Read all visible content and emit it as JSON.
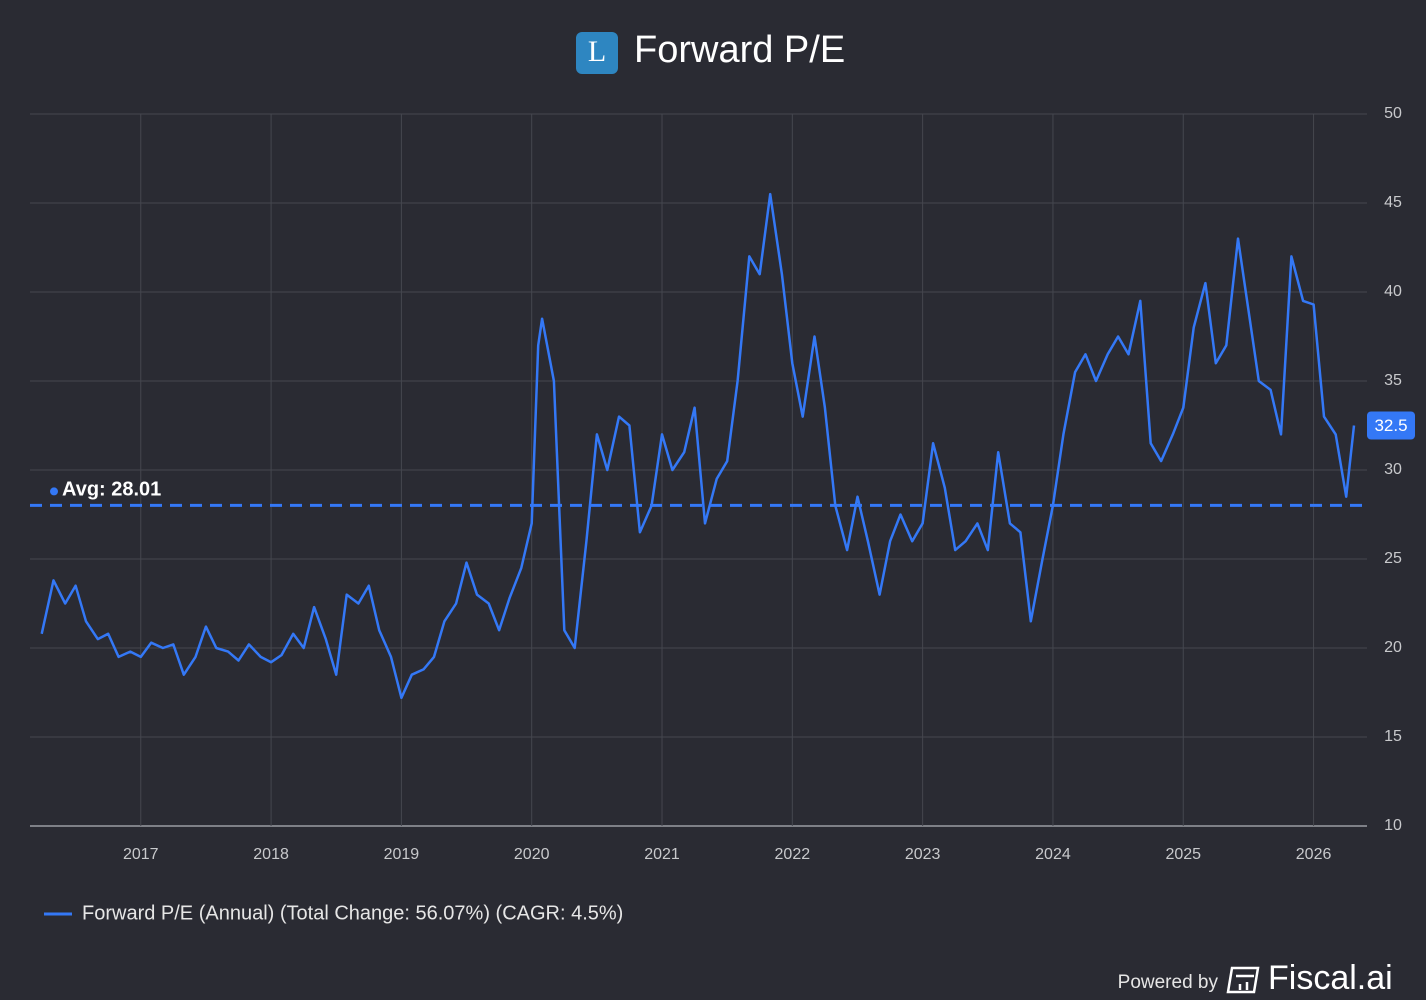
{
  "chart_data": {
    "type": "line",
    "title": "Forward P/E",
    "logo_letter": "L",
    "x": [
      2016.24,
      2016.33,
      2016.42,
      2016.5,
      2016.58,
      2016.67,
      2016.75,
      2016.83,
      2016.92,
      2017.0,
      2017.08,
      2017.17,
      2017.25,
      2017.33,
      2017.42,
      2017.5,
      2017.58,
      2017.67,
      2017.75,
      2017.83,
      2017.92,
      2018.0,
      2018.08,
      2018.17,
      2018.25,
      2018.33,
      2018.42,
      2018.5,
      2018.58,
      2018.67,
      2018.75,
      2018.83,
      2018.92,
      2019.0,
      2019.08,
      2019.17,
      2019.25,
      2019.33,
      2019.42,
      2019.5,
      2019.58,
      2019.67,
      2019.75,
      2019.83,
      2019.92,
      2020.0,
      2020.05,
      2020.08,
      2020.17,
      2020.25,
      2020.33,
      2020.42,
      2020.5,
      2020.58,
      2020.67,
      2020.75,
      2020.83,
      2020.92,
      2021.0,
      2021.08,
      2021.17,
      2021.25,
      2021.33,
      2021.42,
      2021.5,
      2021.58,
      2021.67,
      2021.75,
      2021.83,
      2021.92,
      2022.0,
      2022.08,
      2022.17,
      2022.25,
      2022.33,
      2022.42,
      2022.5,
      2022.58,
      2022.67,
      2022.75,
      2022.83,
      2022.92,
      2023.0,
      2023.08,
      2023.17,
      2023.25,
      2023.33,
      2023.42,
      2023.5,
      2023.58,
      2023.67,
      2023.75,
      2023.83,
      2023.92,
      2024.0,
      2024.08,
      2024.17,
      2024.25,
      2024.33,
      2024.42,
      2024.5,
      2024.58,
      2024.67,
      2024.75,
      2024.83,
      2024.92,
      2025.0,
      2025.08,
      2025.17,
      2025.25,
      2025.33,
      2025.42,
      2025.5,
      2025.58,
      2025.67,
      2025.75,
      2025.83,
      2025.92,
      2026.0,
      2026.08,
      2026.17,
      2026.25,
      2026.31
    ],
    "series": [
      {
        "name": "Forward P/E (Annual) (Total Change: 56.07%) (CAGR: 4.5%)",
        "color": "#3478f6",
        "values": [
          20.8,
          23.8,
          22.5,
          23.5,
          21.5,
          20.5,
          20.8,
          19.5,
          19.8,
          19.5,
          20.3,
          20,
          20.2,
          18.5,
          19.5,
          21.2,
          20,
          19.8,
          19.3,
          20.2,
          19.5,
          19.2,
          19.6,
          20.8,
          20,
          22.3,
          20.5,
          18.5,
          23,
          22.5,
          23.5,
          21,
          19.5,
          17.2,
          18.5,
          18.8,
          19.5,
          21.5,
          22.5,
          24.8,
          23,
          22.5,
          21,
          22.8,
          24.5,
          27,
          37,
          38.5,
          35,
          21,
          20,
          26,
          32,
          30,
          33,
          32.5,
          26.5,
          28,
          32,
          30,
          31,
          33.5,
          27,
          29.5,
          30.5,
          35,
          42,
          41,
          45.5,
          41,
          36,
          33,
          37.5,
          33.5,
          28,
          25.5,
          28.5,
          26,
          23,
          26,
          27.5,
          26,
          27,
          31.5,
          29,
          25.5,
          26,
          27,
          25.5,
          31,
          27,
          26.5,
          21.5,
          25,
          28,
          32,
          35.5,
          36.5,
          35,
          36.5,
          37.5,
          36.5,
          39.5,
          31.5,
          30.5,
          32,
          33.5,
          38,
          40.5,
          36,
          37,
          43,
          39,
          35,
          34.5,
          32,
          42,
          39.5,
          39.3,
          33,
          32,
          28.5,
          32.5
        ]
      }
    ],
    "xlim": [
      2016.15,
      2026.41
    ],
    "ylim": [
      10,
      50
    ],
    "xticks": [
      2017,
      2018,
      2019,
      2020,
      2021,
      2022,
      2023,
      2024,
      2025,
      2026
    ],
    "yticks": [
      10,
      15,
      20,
      25,
      30,
      35,
      40,
      45,
      50
    ],
    "average": 28.01,
    "average_label": "Avg: 28.01",
    "powered_by": "Powered by",
    "brand": "Fiscal.ai"
  }
}
